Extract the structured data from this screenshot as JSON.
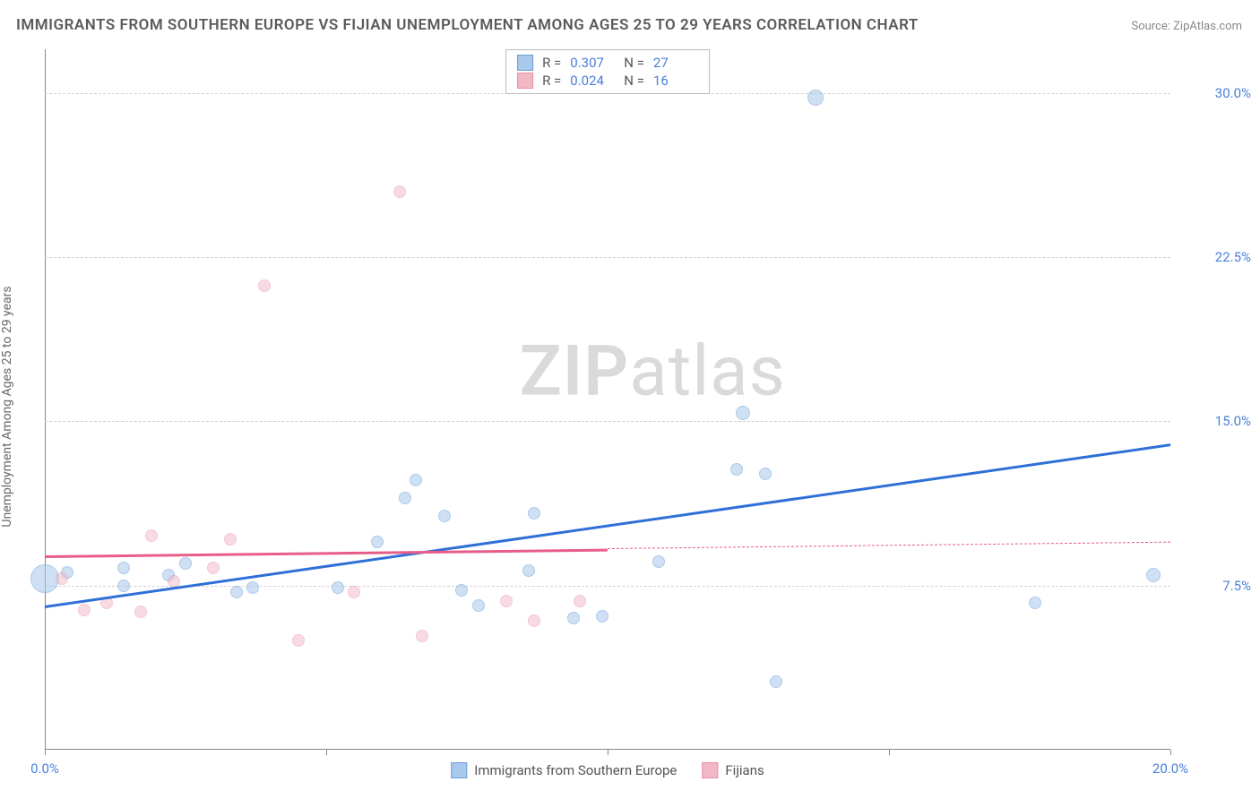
{
  "title": "IMMIGRANTS FROM SOUTHERN EUROPE VS FIJIAN UNEMPLOYMENT AMONG AGES 25 TO 29 YEARS CORRELATION CHART",
  "source": "Source: ZipAtlas.com",
  "watermark_a": "ZIP",
  "watermark_b": "atlas",
  "y_axis_label": "Unemployment Among Ages 25 to 29 years",
  "chart": {
    "type": "scatter",
    "xlim": [
      0,
      20
    ],
    "ylim": [
      0,
      32
    ],
    "x_ticks": [
      0,
      5,
      10,
      15,
      20
    ],
    "x_tick_labels": [
      "0.0%",
      "",
      "",
      "",
      "20.0%"
    ],
    "y_gridlines": [
      7.5,
      15.0,
      22.5,
      30.0
    ],
    "y_tick_labels": [
      "7.5%",
      "15.0%",
      "22.5%",
      "30.0%"
    ],
    "background_color": "#ffffff",
    "grid_color": "#d0d0d0",
    "axis_color": "#888888",
    "tick_label_color": "#4a7fd8",
    "title_color": "#5a5a5a",
    "title_fontsize": 17,
    "label_fontsize": 14,
    "tick_fontsize": 15
  },
  "series": [
    {
      "name": "Immigrants from Southern Europe",
      "fill": "#a8c8ec",
      "stroke": "#6b9fd8",
      "fill_opacity": 0.55,
      "trend_color": "#2e6fd8",
      "trend_width": 2.5,
      "R": "0.307",
      "N": "27",
      "trend": {
        "x1": 0,
        "y1": 6.6,
        "x2": 20,
        "y2": 14.0
      },
      "points": [
        {
          "x": 0.0,
          "y": 7.8,
          "r": 16
        },
        {
          "x": 0.4,
          "y": 8.1,
          "r": 7
        },
        {
          "x": 1.4,
          "y": 8.3,
          "r": 7
        },
        {
          "x": 1.4,
          "y": 7.5,
          "r": 7
        },
        {
          "x": 2.2,
          "y": 8.0,
          "r": 7
        },
        {
          "x": 2.5,
          "y": 8.5,
          "r": 7
        },
        {
          "x": 3.4,
          "y": 7.2,
          "r": 7
        },
        {
          "x": 3.7,
          "y": 7.4,
          "r": 7
        },
        {
          "x": 5.2,
          "y": 7.4,
          "r": 7
        },
        {
          "x": 5.9,
          "y": 9.5,
          "r": 7
        },
        {
          "x": 6.4,
          "y": 11.5,
          "r": 7
        },
        {
          "x": 6.6,
          "y": 12.3,
          "r": 7
        },
        {
          "x": 7.1,
          "y": 10.7,
          "r": 7
        },
        {
          "x": 7.4,
          "y": 7.3,
          "r": 7
        },
        {
          "x": 7.7,
          "y": 6.6,
          "r": 7
        },
        {
          "x": 8.6,
          "y": 8.2,
          "r": 7
        },
        {
          "x": 8.7,
          "y": 10.8,
          "r": 7
        },
        {
          "x": 9.4,
          "y": 6.0,
          "r": 7
        },
        {
          "x": 9.9,
          "y": 6.1,
          "r": 7
        },
        {
          "x": 10.9,
          "y": 8.6,
          "r": 7
        },
        {
          "x": 12.3,
          "y": 12.8,
          "r": 7
        },
        {
          "x": 12.4,
          "y": 15.4,
          "r": 8
        },
        {
          "x": 12.8,
          "y": 12.6,
          "r": 7
        },
        {
          "x": 13.0,
          "y": 3.1,
          "r": 7
        },
        {
          "x": 13.7,
          "y": 29.8,
          "r": 9
        },
        {
          "x": 17.6,
          "y": 6.7,
          "r": 7
        },
        {
          "x": 19.7,
          "y": 8.0,
          "r": 8
        }
      ]
    },
    {
      "name": "Fijians",
      "fill": "#f2b8c6",
      "stroke": "#e88fa6",
      "fill_opacity": 0.5,
      "trend_color": "#e85d87",
      "trend_width": 2.5,
      "R": "0.024",
      "N": "16",
      "trend_solid": {
        "x1": 0,
        "y1": 8.9,
        "x2": 10,
        "y2": 9.2
      },
      "trend_dash": {
        "x1": 10,
        "y1": 9.2,
        "x2": 20,
        "y2": 9.5
      },
      "points": [
        {
          "x": 0.3,
          "y": 7.8,
          "r": 7
        },
        {
          "x": 0.7,
          "y": 6.4,
          "r": 7
        },
        {
          "x": 1.1,
          "y": 6.7,
          "r": 7
        },
        {
          "x": 1.7,
          "y": 6.3,
          "r": 7
        },
        {
          "x": 1.9,
          "y": 9.8,
          "r": 7
        },
        {
          "x": 2.3,
          "y": 7.7,
          "r": 7
        },
        {
          "x": 3.0,
          "y": 8.3,
          "r": 7
        },
        {
          "x": 3.3,
          "y": 9.6,
          "r": 7
        },
        {
          "x": 3.9,
          "y": 21.2,
          "r": 7
        },
        {
          "x": 4.5,
          "y": 5.0,
          "r": 7
        },
        {
          "x": 5.5,
          "y": 7.2,
          "r": 7
        },
        {
          "x": 6.3,
          "y": 25.5,
          "r": 7
        },
        {
          "x": 6.7,
          "y": 5.2,
          "r": 7
        },
        {
          "x": 8.2,
          "y": 6.8,
          "r": 7
        },
        {
          "x": 8.7,
          "y": 5.9,
          "r": 7
        },
        {
          "x": 9.5,
          "y": 6.8,
          "r": 7
        }
      ]
    }
  ],
  "legend_bottom": [
    {
      "label": "Immigrants from Southern Europe",
      "fill": "#a8c8ec",
      "stroke": "#6b9fd8"
    },
    {
      "label": "Fijians",
      "fill": "#f2b8c6",
      "stroke": "#e88fa6"
    }
  ]
}
